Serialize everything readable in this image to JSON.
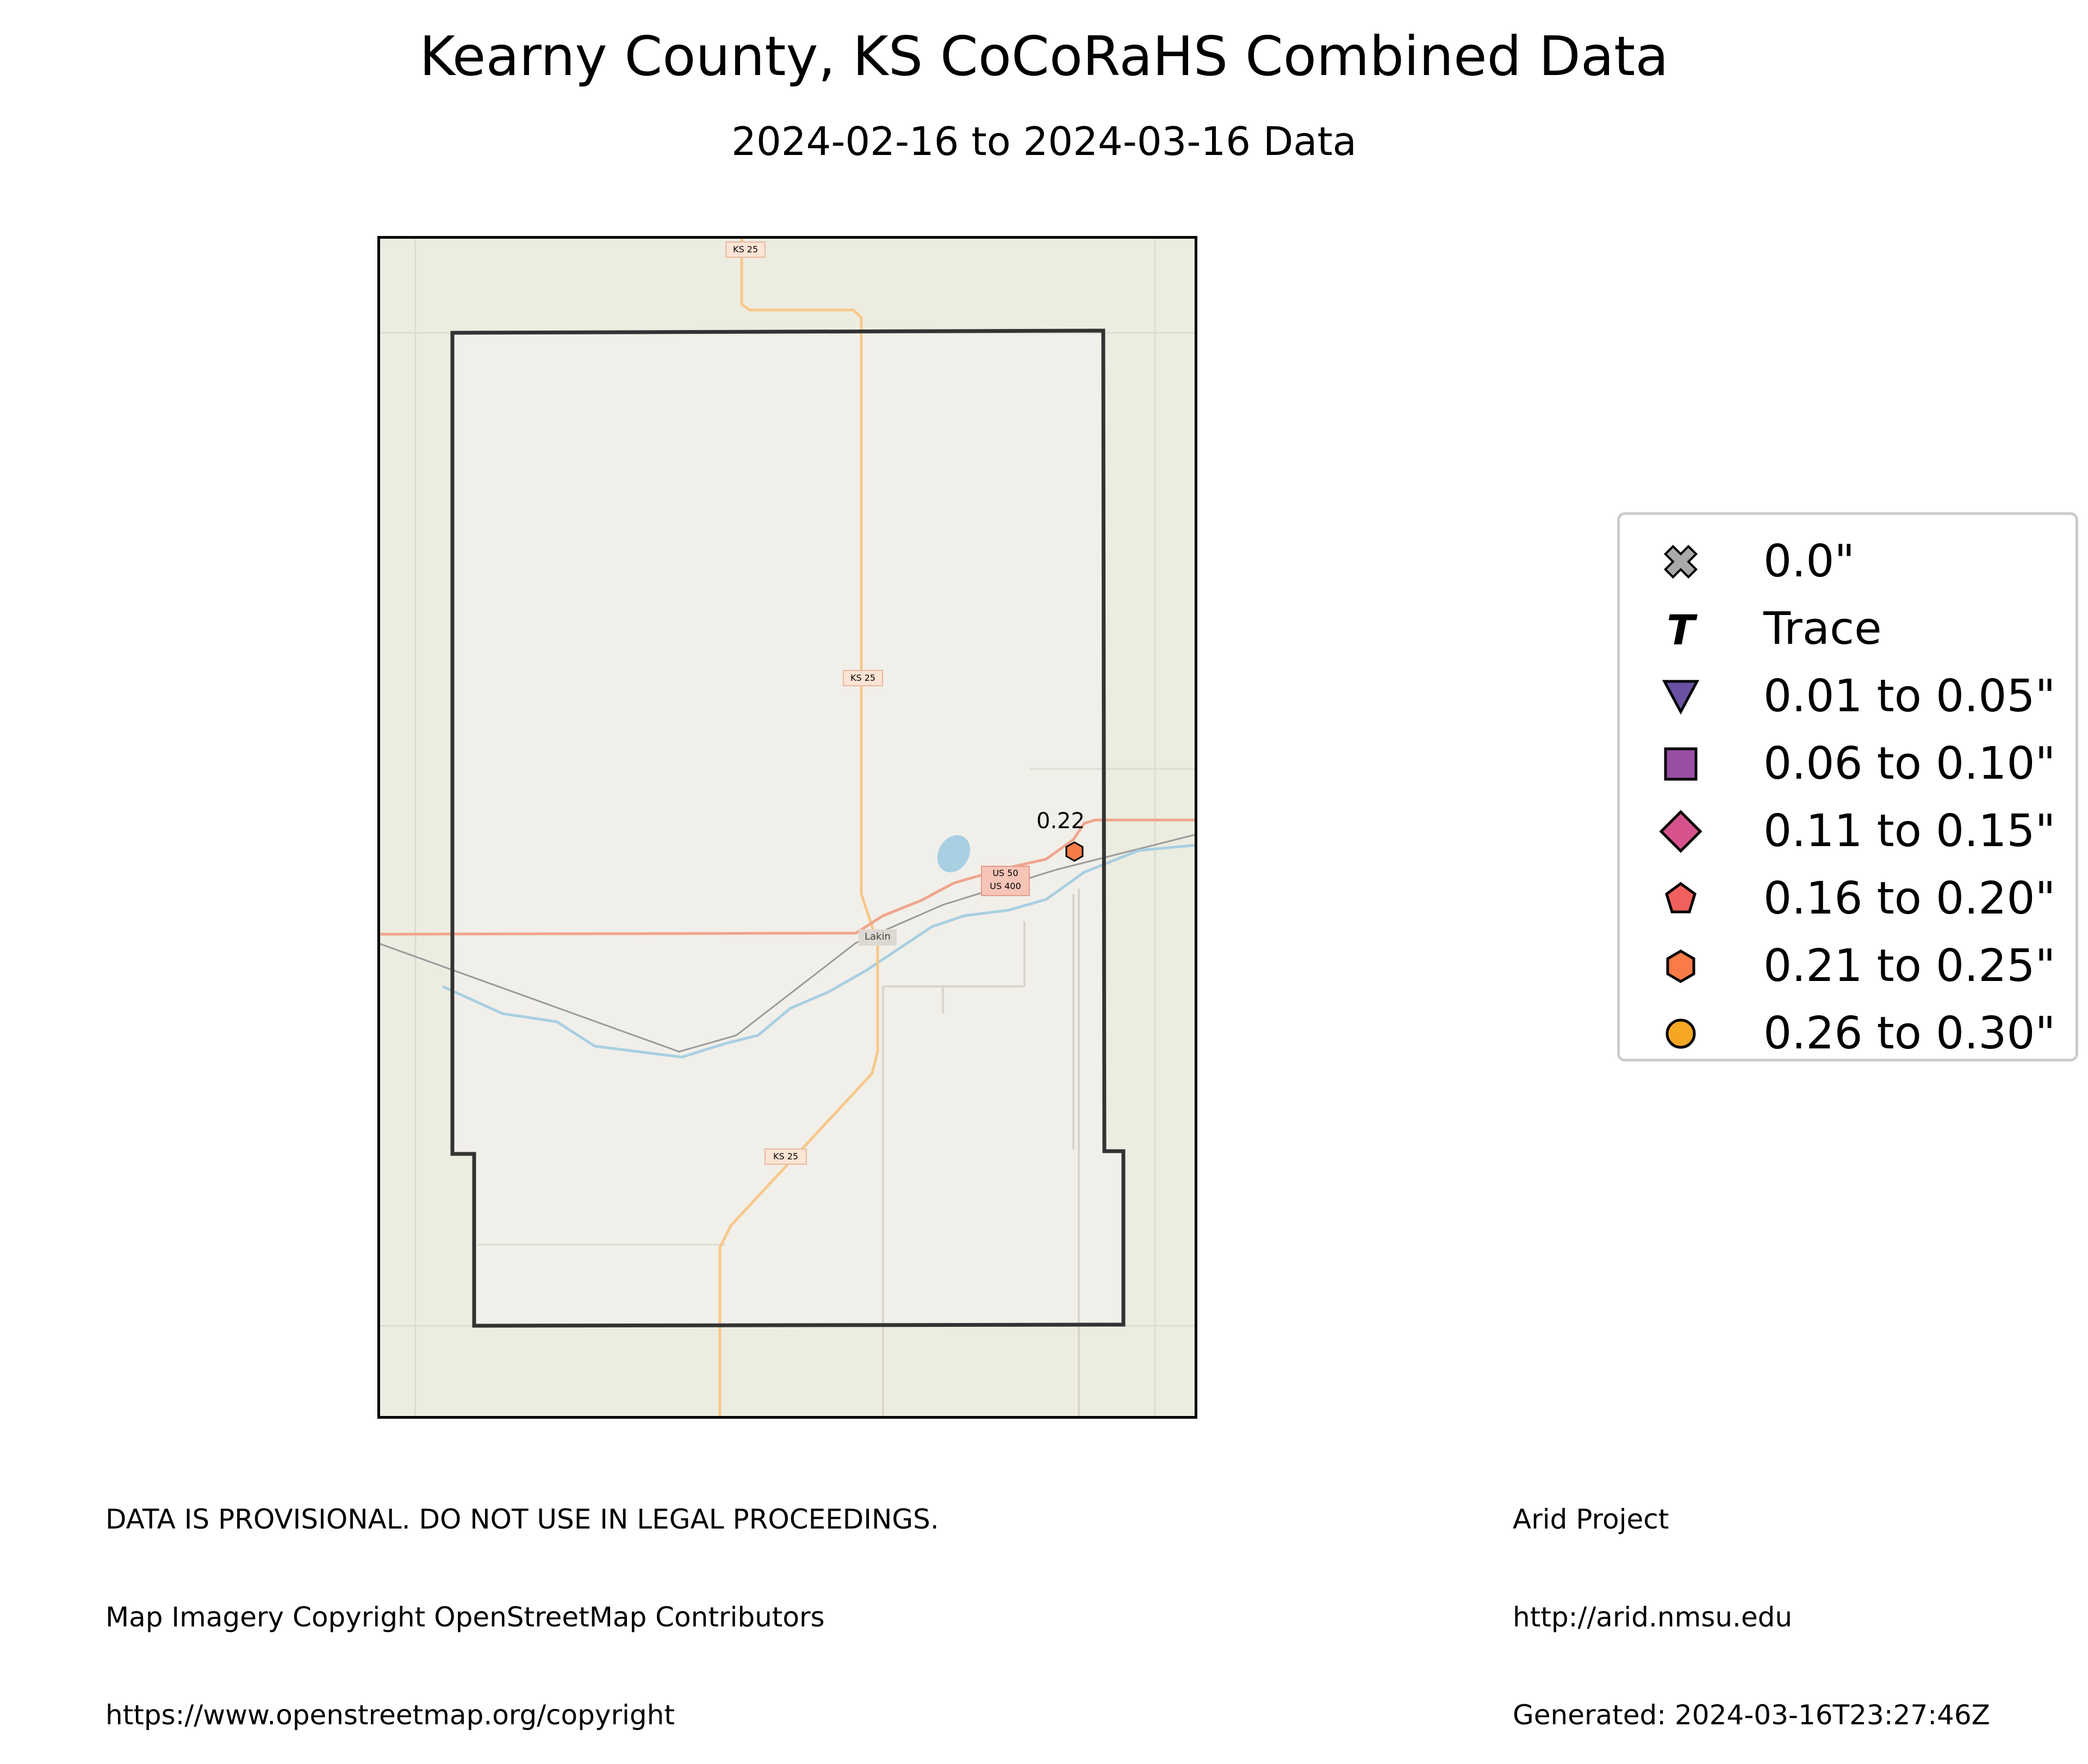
{
  "title": "Kearny County, KS CoCoRaHS Combined Data",
  "subtitle": "2024-02-16 to 2024-03-16 Data",
  "map": {
    "road_labels": [
      "KS 25",
      "KS 25",
      "KS 25",
      "US 50",
      "US 400"
    ],
    "place_labels": [
      "Lakin"
    ],
    "stations": [
      {
        "value_label": "0.22",
        "category": "0.21 to 0.25\"",
        "marker": "hexagon",
        "color": "#f97b47"
      }
    ]
  },
  "legend": {
    "items": [
      {
        "label": "0.0\"",
        "marker": "x-cross",
        "color": "#a9a9a9"
      },
      {
        "label": "Trace",
        "marker": "letter-T",
        "color": "#000000"
      },
      {
        "label": "0.01 to 0.05\"",
        "marker": "triangle-down",
        "color": "#6a51a3"
      },
      {
        "label": "0.06 to 0.10\"",
        "marker": "square",
        "color": "#984ea3"
      },
      {
        "label": "0.11 to 0.15\"",
        "marker": "diamond",
        "color": "#d6528d"
      },
      {
        "label": "0.16 to 0.20\"",
        "marker": "pentagon",
        "color": "#f1605d"
      },
      {
        "label": "0.21 to 0.25\"",
        "marker": "hexagon",
        "color": "#f97b47"
      },
      {
        "label": "0.26 to 0.30\"",
        "marker": "circle",
        "color": "#f5a623"
      }
    ]
  },
  "footer": {
    "left": [
      "DATA IS PROVISIONAL. DO NOT USE IN LEGAL PROCEEDINGS.",
      "Map Imagery Copyright OpenStreetMap Contributors",
      "https://www.openstreetmap.org/copyright"
    ],
    "right": [
      "Arid Project",
      "http://arid.nmsu.edu",
      "Generated: 2024-03-16T23:27:46Z"
    ]
  }
}
